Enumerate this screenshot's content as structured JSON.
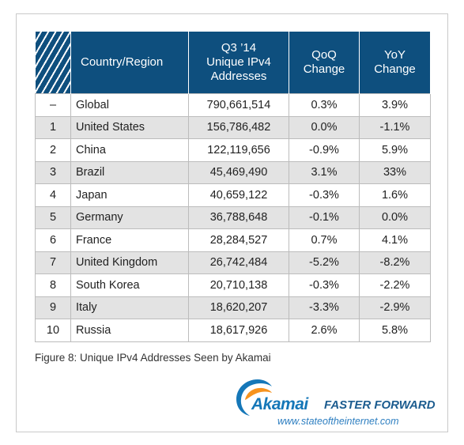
{
  "chart_data": {
    "type": "table",
    "title": "",
    "caption": "Figure 8: Unique IPv4 Addresses Seen by Akamai",
    "columns": [
      "",
      "Country/Region",
      "Q3 ’14 Unique IPv4 Addresses",
      "QoQ Change",
      "YoY Change"
    ],
    "header_lines": {
      "country": "Country/Region",
      "addresses": [
        "Q3 ’14",
        "Unique IPv4",
        "Addresses"
      ],
      "qoq": [
        "QoQ",
        "Change"
      ],
      "yoy": [
        "YoY",
        "Change"
      ]
    },
    "rows": [
      {
        "rank": "–",
        "country": "Global",
        "addresses": "790,661,514",
        "qoq": "0.3%",
        "yoy": "3.9%"
      },
      {
        "rank": "1",
        "country": "United States",
        "addresses": "156,786,482",
        "qoq": "0.0%",
        "yoy": "-1.1%"
      },
      {
        "rank": "2",
        "country": "China",
        "addresses": "122,119,656",
        "qoq": "-0.9%",
        "yoy": "5.9%"
      },
      {
        "rank": "3",
        "country": "Brazil",
        "addresses": "45,469,490",
        "qoq": "3.1%",
        "yoy": "33%"
      },
      {
        "rank": "4",
        "country": "Japan",
        "addresses": "40,659,122",
        "qoq": "-0.3%",
        "yoy": "1.6%"
      },
      {
        "rank": "5",
        "country": "Germany",
        "addresses": "36,788,648",
        "qoq": "-0.1%",
        "yoy": "0.0%"
      },
      {
        "rank": "6",
        "country": "France",
        "addresses": "28,284,527",
        "qoq": "0.7%",
        "yoy": "4.1%"
      },
      {
        "rank": "7",
        "country": "United Kingdom",
        "addresses": "26,742,484",
        "qoq": "-5.2%",
        "yoy": "-8.2%"
      },
      {
        "rank": "8",
        "country": "South Korea",
        "addresses": "20,710,138",
        "qoq": "-0.3%",
        "yoy": "-2.2%"
      },
      {
        "rank": "9",
        "country": "Italy",
        "addresses": "18,620,207",
        "qoq": "-3.3%",
        "yoy": "-2.9%"
      },
      {
        "rank": "10",
        "country": "Russia",
        "addresses": "18,617,926",
        "qoq": "2.6%",
        "yoy": "5.8%"
      }
    ]
  },
  "branding": {
    "logo": "Akamai",
    "tagline": "FASTER FORWARD",
    "url": "www.stateoftheinternet.com",
    "logo_icon": "akamai-swoosh-icon"
  },
  "colors": {
    "header_bg": "#0e4f7e",
    "alt_row_bg": "#e3e3e3",
    "logo_blue": "#1577b8",
    "logo_orange": "#f7931e"
  }
}
